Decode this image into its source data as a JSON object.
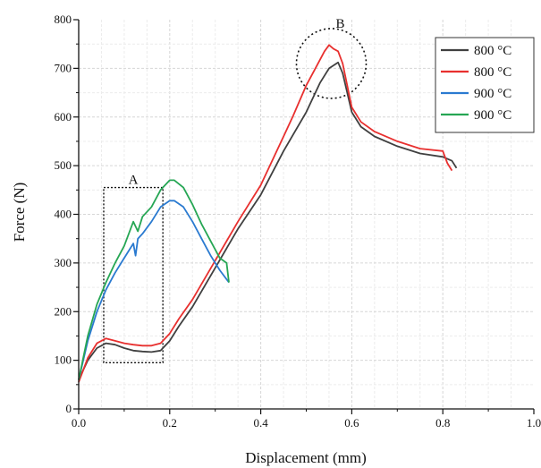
{
  "chart_data": {
    "type": "line",
    "xlabel": "Displacement (mm)",
    "ylabel": "Force (N)",
    "xlim": [
      0.0,
      1.0
    ],
    "ylim": [
      0,
      800
    ],
    "x_ticks": [
      "0.0",
      "0.2",
      "0.4",
      "0.6",
      "0.8",
      "1.0"
    ],
    "y_ticks": [
      "0",
      "100",
      "200",
      "300",
      "400",
      "500",
      "600",
      "700",
      "800"
    ],
    "grid": true,
    "legend_position": "top-right",
    "annotations": [
      {
        "label": "A",
        "shape": "dashed-rectangle",
        "x_range": [
          0.055,
          0.185
        ],
        "y_range": [
          95,
          455
        ]
      },
      {
        "label": "B",
        "shape": "dashed-circle",
        "center": [
          0.555,
          710
        ]
      }
    ],
    "series": [
      {
        "name": "800 °C",
        "color": "#404040",
        "x": [
          0.0,
          0.02,
          0.04,
          0.06,
          0.08,
          0.1,
          0.12,
          0.14,
          0.16,
          0.18,
          0.2,
          0.22,
          0.25,
          0.3,
          0.35,
          0.4,
          0.45,
          0.5,
          0.53,
          0.55,
          0.57,
          0.58,
          0.6,
          0.62,
          0.65,
          0.7,
          0.75,
          0.8,
          0.82,
          0.83
        ],
        "y": [
          60,
          100,
          125,
          135,
          132,
          125,
          120,
          118,
          117,
          120,
          140,
          170,
          210,
          290,
          370,
          440,
          530,
          610,
          670,
          700,
          712,
          690,
          610,
          580,
          560,
          540,
          525,
          518,
          510,
          495
        ]
      },
      {
        "name": "800 °C",
        "color": "#e8302f",
        "x": [
          0.0,
          0.02,
          0.04,
          0.06,
          0.08,
          0.1,
          0.12,
          0.14,
          0.16,
          0.18,
          0.2,
          0.22,
          0.25,
          0.3,
          0.35,
          0.4,
          0.45,
          0.47,
          0.5,
          0.52,
          0.54,
          0.55,
          0.56,
          0.57,
          0.58,
          0.6,
          0.62,
          0.65,
          0.7,
          0.75,
          0.8,
          0.81,
          0.82
        ],
        "y": [
          55,
          105,
          135,
          145,
          140,
          135,
          132,
          130,
          130,
          135,
          155,
          185,
          225,
          305,
          385,
          460,
          560,
          600,
          665,
          700,
          735,
          748,
          740,
          735,
          710,
          620,
          590,
          570,
          550,
          535,
          530,
          505,
          490
        ]
      },
      {
        "name": "900 °C",
        "color": "#2a7ad0",
        "x": [
          0.0,
          0.02,
          0.04,
          0.06,
          0.08,
          0.1,
          0.12,
          0.125,
          0.13,
          0.14,
          0.16,
          0.18,
          0.2,
          0.21,
          0.23,
          0.25,
          0.27,
          0.29,
          0.31,
          0.33
        ],
        "y": [
          60,
          140,
          200,
          245,
          280,
          310,
          340,
          315,
          350,
          360,
          385,
          415,
          428,
          428,
          415,
          385,
          350,
          315,
          285,
          260
        ]
      },
      {
        "name": "900 °C",
        "color": "#26a654",
        "x": [
          0.0,
          0.02,
          0.04,
          0.06,
          0.08,
          0.1,
          0.12,
          0.13,
          0.14,
          0.16,
          0.18,
          0.2,
          0.21,
          0.23,
          0.25,
          0.27,
          0.29,
          0.31,
          0.325,
          0.33
        ],
        "y": [
          60,
          150,
          215,
          260,
          300,
          335,
          385,
          365,
          395,
          415,
          450,
          470,
          470,
          455,
          420,
          380,
          345,
          310,
          300,
          260
        ]
      }
    ]
  }
}
